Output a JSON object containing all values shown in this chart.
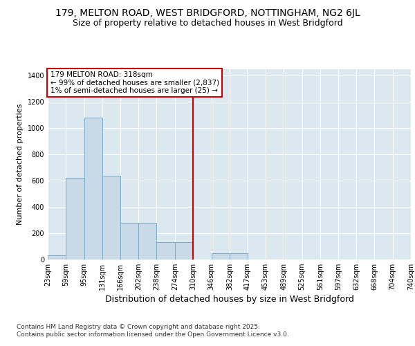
{
  "title": "179, MELTON ROAD, WEST BRIDGFORD, NOTTINGHAM, NG2 6JL",
  "subtitle": "Size of property relative to detached houses in West Bridgford",
  "xlabel": "Distribution of detached houses by size in West Bridgford",
  "ylabel": "Number of detached properties",
  "bar_color": "#c9d9e8",
  "bar_edge_color": "#7aaac8",
  "vline_x": 310,
  "vline_color": "#cc0000",
  "annotation_text": "179 MELTON ROAD: 318sqm\n← 99% of detached houses are smaller (2,837)\n1% of semi-detached houses are larger (25) →",
  "annotation_box_color": "#cc0000",
  "categories": [
    "23sqm",
    "59sqm",
    "95sqm",
    "131sqm",
    "166sqm",
    "202sqm",
    "238sqm",
    "274sqm",
    "310sqm",
    "346sqm",
    "382sqm",
    "417sqm",
    "453sqm",
    "489sqm",
    "525sqm",
    "561sqm",
    "597sqm",
    "632sqm",
    "668sqm",
    "704sqm",
    "740sqm"
  ],
  "bin_edges": [
    23,
    59,
    95,
    131,
    166,
    202,
    238,
    274,
    310,
    346,
    382,
    417,
    453,
    489,
    525,
    561,
    597,
    632,
    668,
    704,
    740
  ],
  "values": [
    30,
    620,
    1080,
    640,
    280,
    280,
    130,
    130,
    0,
    50,
    50,
    0,
    0,
    0,
    0,
    0,
    0,
    0,
    0,
    0,
    0
  ],
  "ylim": [
    0,
    1450
  ],
  "yticks": [
    0,
    200,
    400,
    600,
    800,
    1000,
    1200,
    1400
  ],
  "plot_bg_color": "#dce8f0",
  "grid_color": "#ffffff",
  "footer": "Contains HM Land Registry data © Crown copyright and database right 2025.\nContains public sector information licensed under the Open Government Licence v3.0.",
  "title_fontsize": 10,
  "subtitle_fontsize": 9,
  "tick_fontsize": 7,
  "ylabel_fontsize": 8,
  "xlabel_fontsize": 9
}
